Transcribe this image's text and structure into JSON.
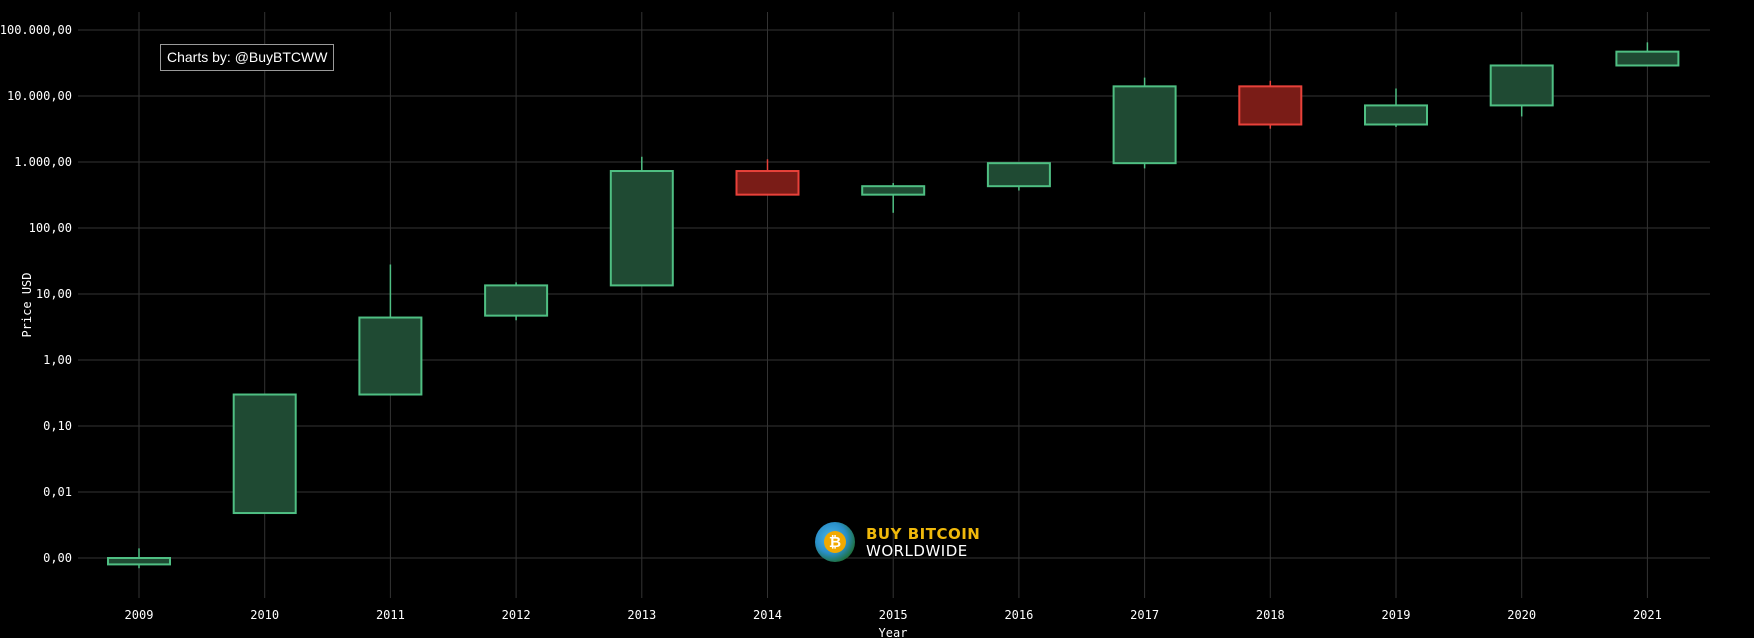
{
  "chart_data": {
    "type": "candlestick",
    "yscale": "log",
    "ylabel": "Price USD",
    "xlabel": "Year",
    "grid": true,
    "y_ticks": [
      {
        "value": 0.001,
        "label": "0,00"
      },
      {
        "value": 0.01,
        "label": "0,01"
      },
      {
        "value": 0.1,
        "label": "0,10"
      },
      {
        "value": 1,
        "label": "1,00"
      },
      {
        "value": 10,
        "label": "10,00"
      },
      {
        "value": 100,
        "label": "100,00"
      },
      {
        "value": 1000,
        "label": "1.000,00"
      },
      {
        "value": 10000,
        "label": "10.000,00"
      },
      {
        "value": 100000,
        "label": "100.000,00"
      }
    ],
    "ylim": [
      0.0005,
      130000
    ],
    "candles": [
      {
        "year": "2009",
        "open": 0.0008,
        "close": 0.001,
        "high": 0.0014,
        "low": 0.0007,
        "direction": "up"
      },
      {
        "year": "2010",
        "open": 0.0048,
        "close": 0.3,
        "high": 0.3,
        "low": 0.0048,
        "direction": "up"
      },
      {
        "year": "2011",
        "open": 0.3,
        "close": 4.4,
        "high": 28,
        "low": 0.3,
        "direction": "up"
      },
      {
        "year": "2012",
        "open": 4.7,
        "close": 13.5,
        "high": 15,
        "low": 4.0,
        "direction": "up"
      },
      {
        "year": "2013",
        "open": 13.5,
        "close": 730,
        "high": 1200,
        "low": 13.3,
        "direction": "up"
      },
      {
        "year": "2014",
        "open": 730,
        "close": 320,
        "high": 1100,
        "low": 320,
        "direction": "down"
      },
      {
        "year": "2015",
        "open": 320,
        "close": 430,
        "high": 480,
        "low": 170,
        "direction": "up"
      },
      {
        "year": "2016",
        "open": 430,
        "close": 960,
        "high": 980,
        "low": 370,
        "direction": "up"
      },
      {
        "year": "2017",
        "open": 960,
        "close": 14000,
        "high": 19000,
        "low": 800,
        "direction": "up"
      },
      {
        "year": "2018",
        "open": 14000,
        "close": 3700,
        "high": 17000,
        "low": 3200,
        "direction": "down"
      },
      {
        "year": "2019",
        "open": 3700,
        "close": 7200,
        "high": 13000,
        "low": 3400,
        "direction": "up"
      },
      {
        "year": "2020",
        "open": 7200,
        "close": 29000,
        "high": 29000,
        "low": 4900,
        "direction": "up"
      },
      {
        "year": "2021",
        "open": 29000,
        "close": 47000,
        "high": 65000,
        "low": 29000,
        "direction": "up"
      }
    ],
    "colors": {
      "background": "#000000",
      "grid": "#333333",
      "up_fill": "#1f4a33",
      "up_line": "#4fbf83",
      "down_fill": "#7a1c17",
      "down_line": "#e8413a"
    }
  },
  "credit": "Charts by: @BuyBTCWW",
  "logo": {
    "line1": "BUY BITCOIN",
    "line2": "WORLDWIDE",
    "coin_symbol": "₿"
  }
}
